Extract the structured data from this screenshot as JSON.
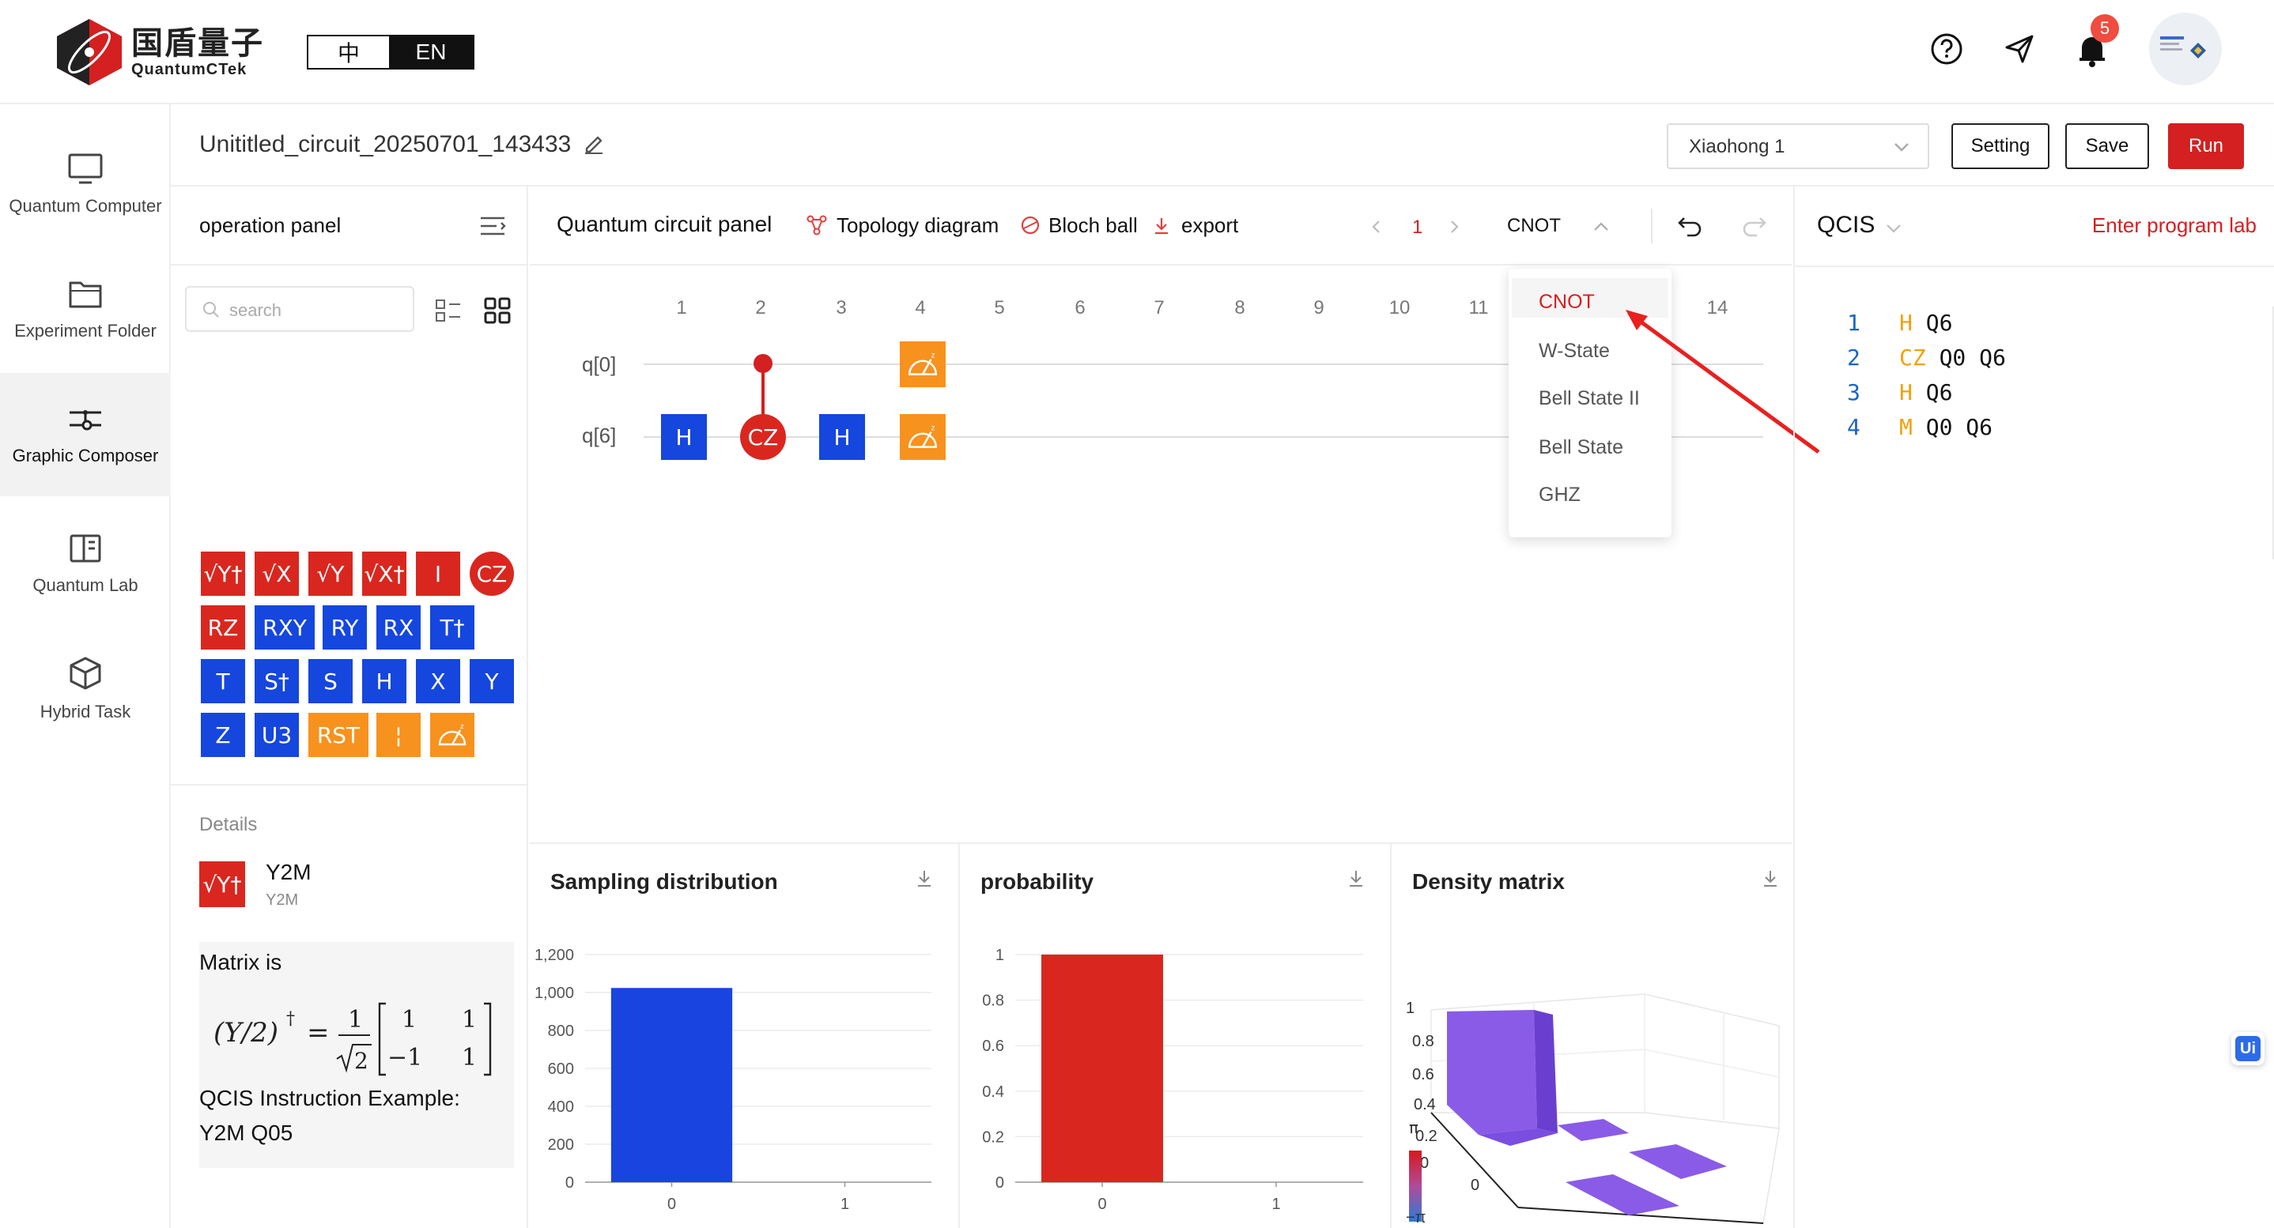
{
  "header": {
    "logo_cn": "国盾量子",
    "logo_en": "QuantumCTek",
    "lang_zh": "中",
    "lang_en": "EN",
    "notification_count": "5",
    "icons": [
      "help-icon",
      "send-icon",
      "bell-icon"
    ]
  },
  "nav": {
    "items": [
      {
        "label": "Quantum Computer",
        "icon": "monitor-icon"
      },
      {
        "label": "Experiment Folder",
        "icon": "folder-icon"
      },
      {
        "label": "Graphic Composer",
        "icon": "composer-icon",
        "active": true
      },
      {
        "label": "Quantum Lab",
        "icon": "book-icon"
      },
      {
        "label": "Hybrid Task",
        "icon": "cube-icon"
      }
    ]
  },
  "titlebar": {
    "circuit_name": "Unititled_circuit_20250701_143433",
    "device": "Xiaohong 1",
    "setting": "Setting",
    "save": "Save",
    "run": "Run"
  },
  "operation_panel": {
    "title": "operation panel",
    "search_placeholder": "search",
    "gates": [
      {
        "label": "√Y†",
        "color": "red"
      },
      {
        "label": "√X",
        "color": "red"
      },
      {
        "label": "√Y",
        "color": "red"
      },
      {
        "label": "√X†",
        "color": "red"
      },
      {
        "label": "I",
        "color": "red"
      },
      {
        "label": "CZ",
        "color": "red",
        "round": true
      },
      {
        "label": "RZ",
        "color": "red"
      },
      {
        "label": "RXY",
        "color": "blue"
      },
      {
        "label": "RY",
        "color": "blue"
      },
      {
        "label": "RX",
        "color": "blue"
      },
      {
        "label": "T†",
        "color": "blue"
      },
      {
        "label": "T",
        "color": "blue"
      },
      {
        "label": "S†",
        "color": "blue"
      },
      {
        "label": "S",
        "color": "blue"
      },
      {
        "label": "H",
        "color": "blue"
      },
      {
        "label": "X",
        "color": "blue"
      },
      {
        "label": "Y",
        "color": "blue"
      },
      {
        "label": "Z",
        "color": "blue"
      },
      {
        "label": "U3",
        "color": "blue"
      },
      {
        "label": "RST",
        "color": "orange"
      },
      {
        "label": "¦",
        "color": "orange"
      },
      {
        "label": "measure-icon",
        "color": "orange"
      }
    ],
    "details": {
      "title": "Details",
      "gate_name": "Y2M",
      "gate_sub": "Y2M",
      "gate_icon_label": "√Y†",
      "matrix_label": "Matrix is",
      "example_label": "QCIS Instruction Example:",
      "example_code": "Y2M Q05"
    }
  },
  "circuit_panel": {
    "title": "Quantum circuit panel",
    "topology": "Topology diagram",
    "bloch": "Bloch ball",
    "export": "export",
    "page": "1",
    "template": "CNOT",
    "columns": [
      "1",
      "2",
      "3",
      "4",
      "5",
      "6",
      "7",
      "8",
      "9",
      "10",
      "11",
      "14"
    ],
    "qubits": [
      "q[0]",
      "q[6]"
    ],
    "gates": [
      {
        "label": "H",
        "qubit": "q[6]",
        "col": 1
      },
      {
        "label": "CZ",
        "qubit": "q[6]",
        "col": 2
      },
      {
        "label": "H",
        "qubit": "q[6]",
        "col": 3
      },
      {
        "label": "M",
        "qubit": "q[0]",
        "col": 4
      },
      {
        "label": "M",
        "qubit": "q[6]",
        "col": 4
      }
    ],
    "dropdown": [
      "CNOT",
      "W-State",
      "Bell State II",
      "Bell State",
      "GHZ"
    ],
    "dropdown_selected": "CNOT"
  },
  "charts": {
    "sampling_title": "Sampling distribution",
    "probability_title": "probability",
    "density_title": "Density matrix",
    "density_ticks": [
      "1",
      "0.8",
      "0.6",
      "0.4",
      "0.2",
      "0",
      "0"
    ],
    "phase_top": "π",
    "phase_bottom": "−π",
    "colors": {
      "sampling": "#1a44e0",
      "probability": "#d9271f",
      "density": "#8a5be6"
    }
  },
  "chart_data": [
    {
      "type": "bar",
      "title": "Sampling distribution",
      "categories": [
        "0",
        "1"
      ],
      "values": [
        1024,
        0
      ],
      "ylim": [
        0,
        1200
      ],
      "yticks": [
        "0",
        "200",
        "400",
        "600",
        "800",
        "1,000",
        "1,200"
      ]
    },
    {
      "type": "bar",
      "title": "probability",
      "categories": [
        "0",
        "1"
      ],
      "values": [
        1,
        0
      ],
      "ylim": [
        0,
        1
      ],
      "yticks": [
        "0",
        "0.2",
        "0.4",
        "0.6",
        "0.8",
        "1"
      ]
    }
  ],
  "qcis": {
    "title": "QCIS",
    "link": "Enter program lab",
    "lines": [
      {
        "n": "1",
        "kw": "H",
        "rest": " Q6"
      },
      {
        "n": "2",
        "kw": "CZ",
        "rest": " Q0 Q6"
      },
      {
        "n": "3",
        "kw": "H",
        "rest": " Q6"
      },
      {
        "n": "4",
        "kw": "M",
        "rest": " Q0 Q6"
      }
    ]
  },
  "floating_badge": "Ui"
}
